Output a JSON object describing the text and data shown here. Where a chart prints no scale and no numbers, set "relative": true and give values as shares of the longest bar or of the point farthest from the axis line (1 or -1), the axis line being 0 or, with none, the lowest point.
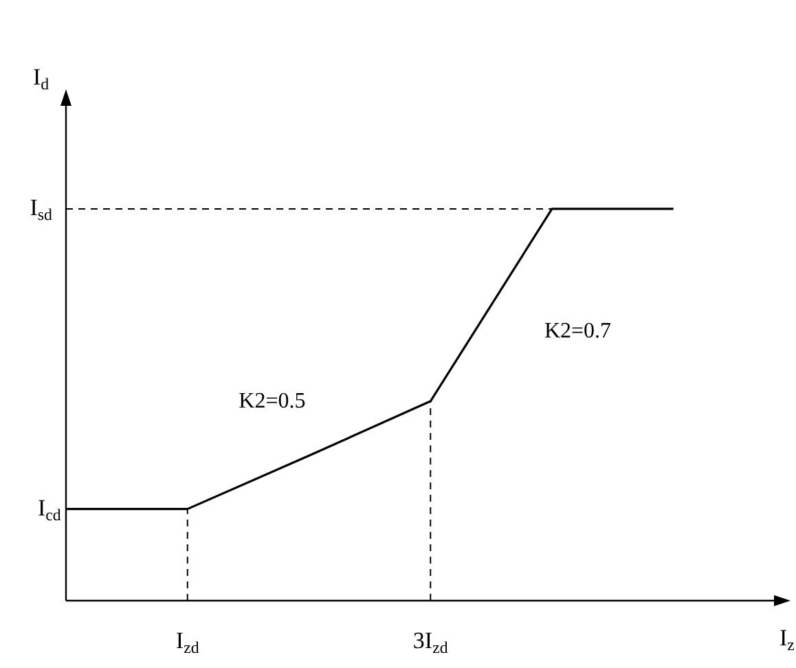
{
  "chart_data": {
    "type": "line",
    "xlabel": "I$_{z}$",
    "ylabel": "I$_{d}$",
    "relative": true,
    "categories": [
      null,
      "I$_{zd}$",
      null,
      "3I$_{zd}$",
      null,
      null
    ],
    "series": [
      {
        "color": "#000000",
        "values": [
          0.234,
          0.234,
          0.37,
          0.509,
          1,
          1
        ]
      }
    ],
    "ref_lines": [
      {
        "axis": "x",
        "value": "I$_{zd}$",
        "line_style": "dashed"
      },
      {
        "axis": "x",
        "value": "3I$_{zd}$",
        "line_style": "dashed"
      },
      {
        "axis": "y",
        "value": 1,
        "label": "I$_{sd}$",
        "line_style": "dashed"
      }
    ],
    "annotations": [
      "K2=0.5",
      "K2=0.7",
      "I$_{cd}$"
    ],
    "marker": "none",
    "line_style": "solid"
  }
}
